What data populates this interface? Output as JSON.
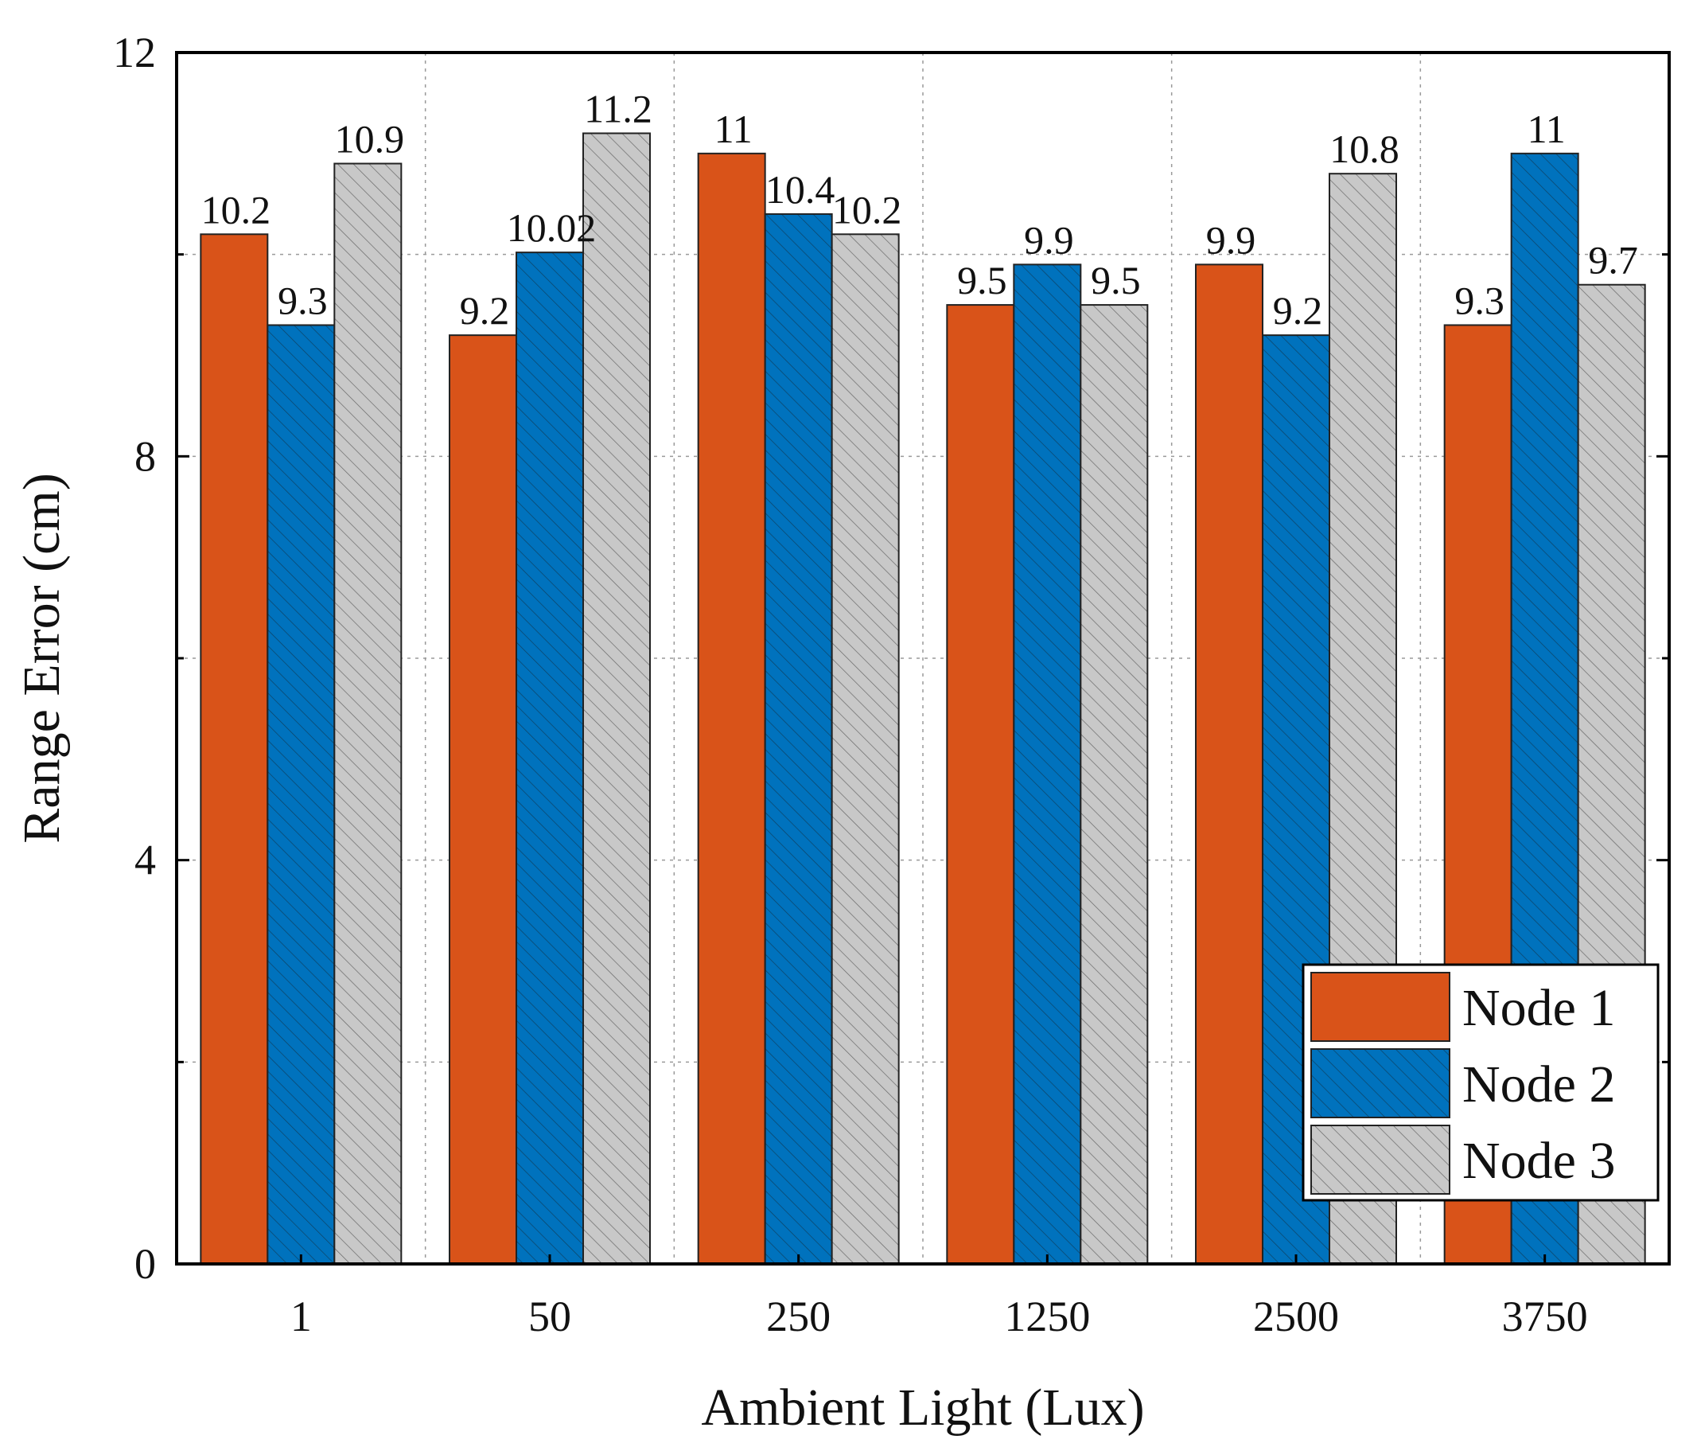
{
  "chart_data": {
    "type": "bar",
    "xlabel": "Ambient Light (Lux)",
    "ylabel": "Range Error (cm)",
    "categories": [
      "1",
      "50",
      "250",
      "1250",
      "2500",
      "3750"
    ],
    "ylim": [
      0,
      12
    ],
    "yticks": [
      0,
      4,
      8,
      12
    ],
    "grid": true,
    "legend_position": "bottom-right",
    "series": [
      {
        "name": "Node 1",
        "color": "#D95319",
        "hatch": false,
        "values": [
          10.2,
          9.2,
          11,
          9.5,
          9.9,
          9.3
        ],
        "labels": [
          "10.2",
          "9.2",
          "11",
          "9.5",
          "9.9",
          "9.3"
        ]
      },
      {
        "name": "Node 2",
        "color": "#0072BD",
        "hatch": true,
        "values": [
          9.3,
          10.02,
          10.4,
          9.9,
          9.2,
          11
        ],
        "labels": [
          "9.3",
          "10.02",
          "10.4",
          "9.9",
          "9.2",
          "11"
        ]
      },
      {
        "name": "Node 3",
        "color": "#C8C8C8",
        "hatch": true,
        "values": [
          10.9,
          11.2,
          10.2,
          9.5,
          10.8,
          9.7
        ],
        "labels": [
          "10.9",
          "11.2",
          "10.2",
          "9.5",
          "10.8",
          "9.7"
        ]
      }
    ]
  }
}
